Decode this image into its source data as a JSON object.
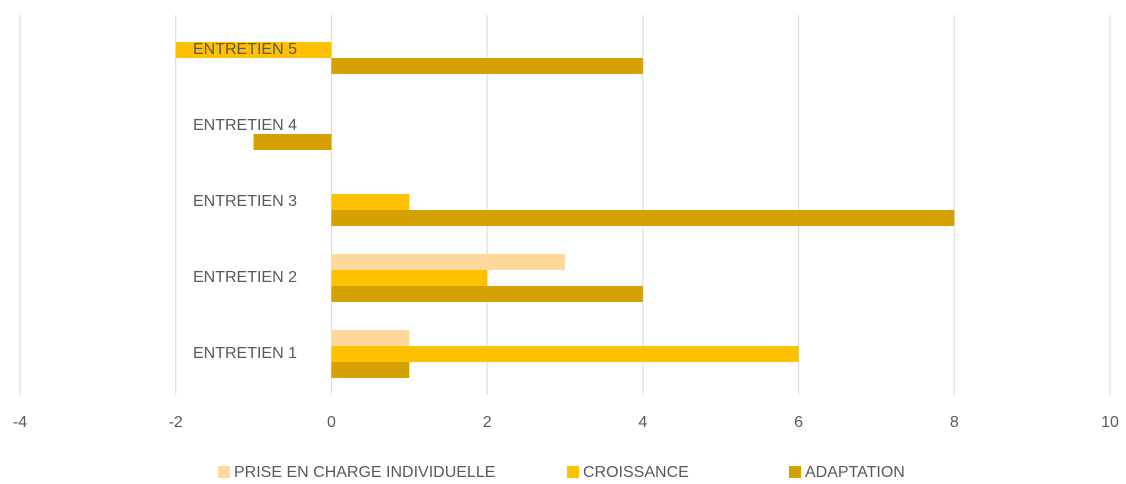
{
  "chart_data": {
    "type": "hbar",
    "categories": [
      "ENTRETIEN 1",
      "ENTRETIEN 2",
      "ENTRETIEN 3",
      "ENTRETIEN 4",
      "ENTRETIEN 5"
    ],
    "series": [
      {
        "name": "PRISE EN CHARGE INDIVIDUELLE",
        "color": "#ffd89b",
        "values": [
          1,
          3,
          0,
          0,
          0
        ]
      },
      {
        "name": "CROISSANCE",
        "color": "#ffc000",
        "values": [
          6,
          2,
          1,
          0,
          -2
        ]
      },
      {
        "name": "ADAPTATION",
        "color": "#d4a100",
        "values": [
          1,
          4,
          8,
          -1,
          4
        ]
      }
    ],
    "xlim": [
      -4,
      10
    ],
    "xticks": [
      -4,
      -2,
      0,
      2,
      4,
      6,
      8,
      10
    ],
    "grid": true,
    "legend": "bottom"
  }
}
